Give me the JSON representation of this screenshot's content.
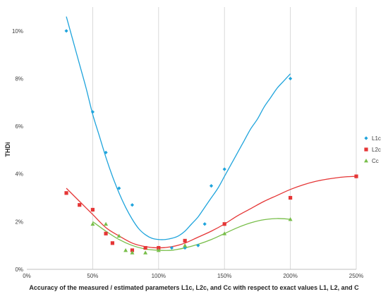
{
  "chart_data": {
    "type": "scatter",
    "title": "",
    "xlabel": "Accuracy of the measured / estimated parameters L1c, L2c, and Cc with respect to exact values L1, L2, and C",
    "ylabel": "THDi",
    "xlim": [
      0,
      250
    ],
    "ylim": [
      0,
      11
    ],
    "x_ticks": [
      0,
      50,
      100,
      150,
      200,
      250
    ],
    "x_tick_labels": [
      "0%",
      "50%",
      "100%",
      "150%",
      "200%",
      "250%"
    ],
    "y_ticks": [
      0,
      2,
      4,
      6,
      8,
      10
    ],
    "y_tick_labels": [
      "0%",
      "2%",
      "4%",
      "6%",
      "8%",
      "10%"
    ],
    "grid": {
      "vertical": true,
      "horizontal": false
    },
    "legend_position": "right",
    "series": [
      {
        "name": "L1c",
        "marker": "diamond",
        "color": "#1fa4dc",
        "x": [
          30,
          50,
          60,
          70,
          80,
          90,
          100,
          110,
          120,
          130,
          135,
          140,
          150,
          200
        ],
        "y": [
          10.0,
          6.6,
          4.9,
          3.4,
          2.7,
          0.9,
          0.9,
          0.9,
          0.9,
          1.0,
          1.9,
          3.5,
          4.2,
          8.0
        ],
        "trend_x": [
          30,
          35,
          40,
          45,
          50,
          55,
          60,
          65,
          70,
          75,
          80,
          85,
          90,
          95,
          100,
          105,
          110,
          115,
          120,
          125,
          130,
          135,
          140,
          145,
          150,
          155,
          160,
          165,
          170,
          175,
          180,
          185,
          190,
          195,
          200
        ],
        "trend_y": [
          10.6,
          9.6,
          8.6,
          7.6,
          6.5,
          5.6,
          4.7,
          3.9,
          3.2,
          2.6,
          2.1,
          1.7,
          1.45,
          1.3,
          1.25,
          1.25,
          1.3,
          1.4,
          1.6,
          1.9,
          2.2,
          2.6,
          3.0,
          3.4,
          3.9,
          4.4,
          4.9,
          5.4,
          5.9,
          6.3,
          6.8,
          7.2,
          7.6,
          7.9,
          8.2
        ]
      },
      {
        "name": "L2c",
        "marker": "square",
        "color": "#e53636",
        "x": [
          30,
          40,
          50,
          60,
          65,
          80,
          90,
          100,
          120,
          150,
          200,
          250
        ],
        "y": [
          3.2,
          2.7,
          2.5,
          1.5,
          1.1,
          0.8,
          0.9,
          0.9,
          1.2,
          1.9,
          3.0,
          3.9
        ],
        "trend_x": [
          30,
          40,
          50,
          60,
          70,
          80,
          90,
          100,
          110,
          120,
          130,
          140,
          150,
          160,
          170,
          180,
          190,
          200,
          210,
          220,
          230,
          240,
          250
        ],
        "trend_y": [
          3.4,
          2.85,
          2.3,
          1.75,
          1.4,
          1.1,
          0.95,
          0.9,
          0.95,
          1.1,
          1.35,
          1.6,
          1.9,
          2.25,
          2.55,
          2.85,
          3.1,
          3.35,
          3.55,
          3.7,
          3.8,
          3.87,
          3.9
        ]
      },
      {
        "name": "Cc",
        "marker": "triangle",
        "color": "#78be4a",
        "x": [
          50,
          60,
          70,
          75,
          80,
          90,
          100,
          120,
          150,
          200
        ],
        "y": [
          1.9,
          1.9,
          1.4,
          0.8,
          0.7,
          0.7,
          0.8,
          1.0,
          1.5,
          2.1
        ],
        "trend_x": [
          50,
          60,
          70,
          80,
          90,
          100,
          110,
          120,
          130,
          140,
          150,
          160,
          170,
          180,
          190,
          200
        ],
        "trend_y": [
          2.0,
          1.6,
          1.25,
          1.0,
          0.85,
          0.8,
          0.8,
          0.9,
          1.05,
          1.25,
          1.5,
          1.75,
          1.95,
          2.08,
          2.13,
          2.1
        ]
      }
    ]
  }
}
